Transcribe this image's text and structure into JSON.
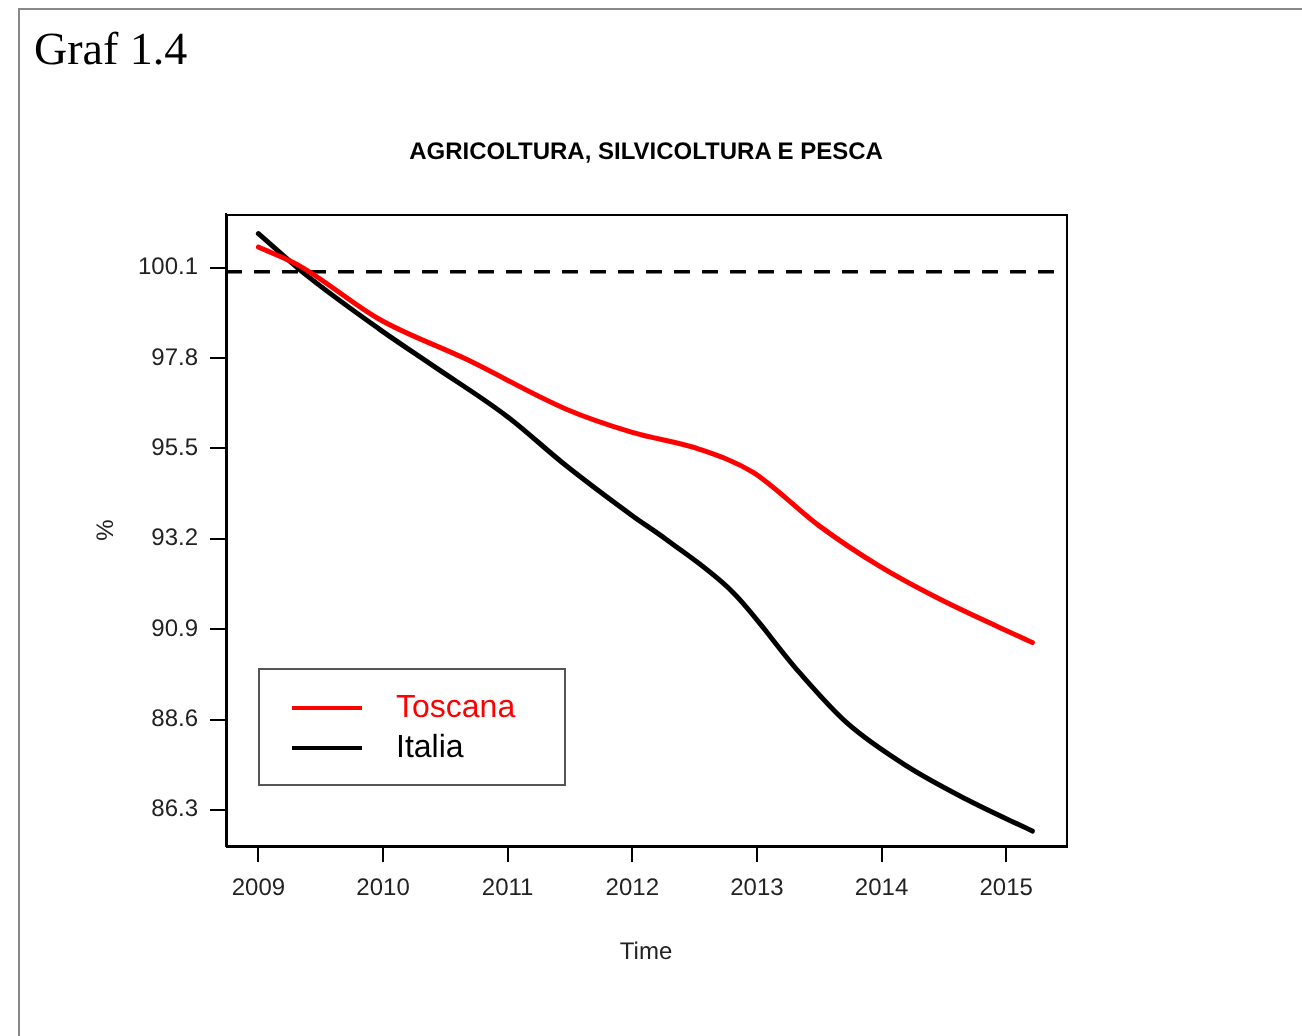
{
  "chart_data": {
    "type": "line",
    "title": "AGRICOLTURA, SILVICOLTURA E PESCA",
    "xlabel": "Time",
    "ylabel": "%",
    "annotations": [
      "Graf 1.4"
    ],
    "xlim": [
      2008.74,
      2015.48
    ],
    "xticks": [
      2009,
      2010,
      2011,
      2012,
      2013,
      2014,
      2015
    ],
    "ylim": [
      85.38,
      101.47
    ],
    "yticks": [
      100.1,
      97.8,
      95.5,
      93.2,
      90.9,
      88.6,
      86.3
    ],
    "ref_lines": [
      {
        "axis": "y",
        "value": 100,
        "color": "#000000",
        "line_style": "dashed"
      }
    ],
    "legend": "bottom left",
    "marker": "none",
    "line_style": "solid",
    "series": [
      {
        "name": "Toscana",
        "color": "#ff0000",
        "x": [
          2009,
          2009.33,
          2009.97,
          2010.67,
          2011.47,
          2012,
          2012.54,
          2012.97,
          2013.5,
          2013.98,
          2014.47,
          2015.21
        ],
        "values": [
          100.63,
          100.15,
          98.79,
          97.77,
          96.5,
          95.91,
          95.48,
          94.89,
          93.53,
          92.51,
          91.66,
          90.56
        ]
      },
      {
        "name": "Italia",
        "color": "#000000",
        "x": [
          2009,
          2009.39,
          2009.97,
          2010.4,
          2010.99,
          2011.47,
          2012,
          2012.27,
          2012.81,
          2013.34,
          2013.72,
          2014.2,
          2014.68,
          2015.21
        ],
        "values": [
          100.97,
          99.9,
          98.54,
          97.61,
          96.33,
          95.06,
          93.79,
          93.19,
          91.83,
          89.8,
          88.52,
          87.42,
          86.57,
          85.76
        ]
      }
    ]
  }
}
